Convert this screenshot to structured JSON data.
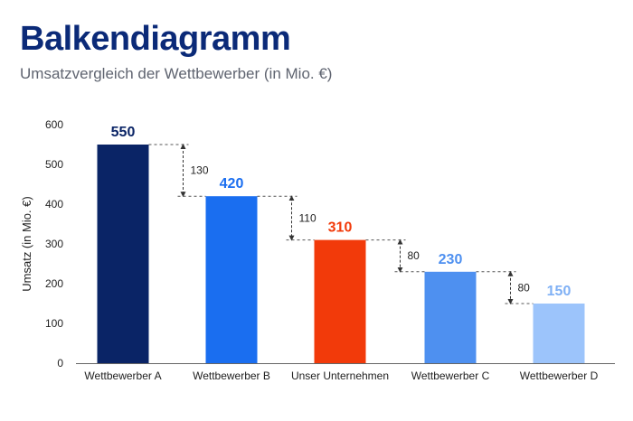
{
  "header": {
    "title": "Balkendiagramm",
    "subtitle": "Umsatzvergleich der Wettbewerber (in Mio. €)"
  },
  "chart_data": {
    "type": "bar",
    "title": "Balkendiagramm",
    "subtitle": "Umsatzvergleich der Wettbewerber (in Mio. €)",
    "xlabel": "",
    "ylabel": "Umsatz (in Mio. €)",
    "categories": [
      "Wettbewerber A",
      "Wettbewerber B",
      "Unser Unternehmen",
      "Wettbewerber C",
      "Wettbewerber D"
    ],
    "values": [
      550,
      420,
      310,
      230,
      150
    ],
    "bar_colors": [
      "#0a2466",
      "#1a6ef0",
      "#f23a0a",
      "#4e90f0",
      "#9cc4fb"
    ],
    "value_label_colors": [
      "#0a2466",
      "#1a6ef0",
      "#f23a0a",
      "#4e90f0",
      "#7fb0f5"
    ],
    "yticks": [
      0,
      100,
      200,
      300,
      400,
      500,
      600
    ],
    "ylim": [
      0,
      600
    ],
    "grid": false,
    "differences": [
      {
        "from": 0,
        "to": 1,
        "label": "130"
      },
      {
        "from": 1,
        "to": 2,
        "label": "110"
      },
      {
        "from": 2,
        "to": 3,
        "label": "80"
      },
      {
        "from": 3,
        "to": 4,
        "label": "80"
      }
    ]
  }
}
